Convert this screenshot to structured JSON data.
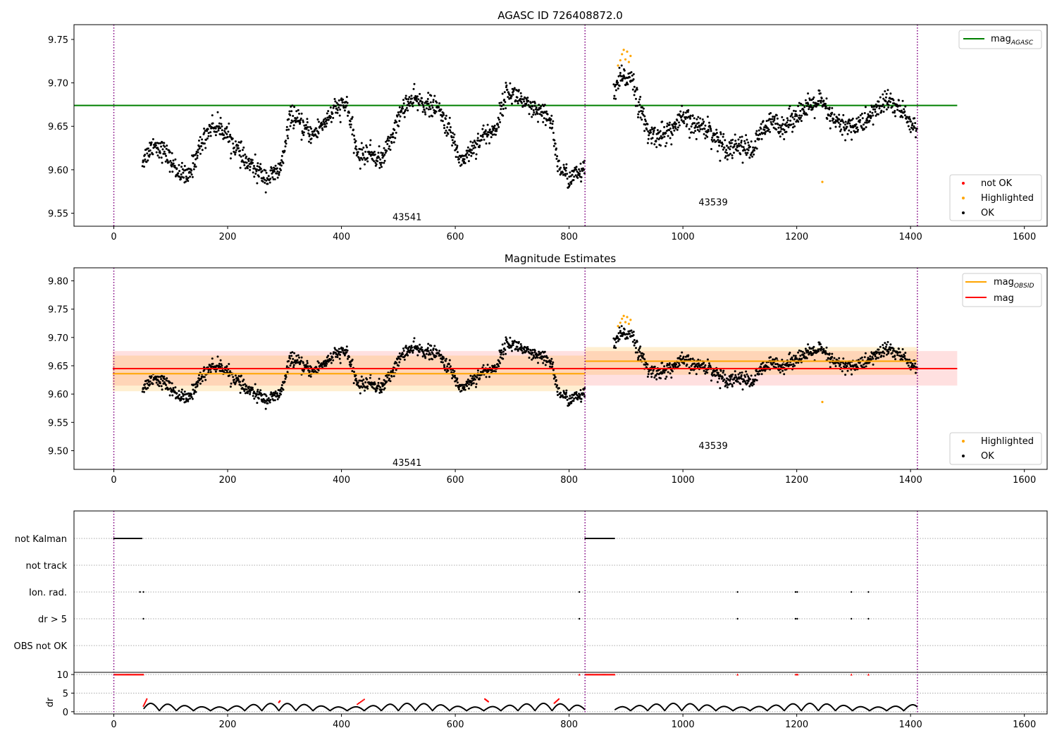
{
  "figure": {
    "title1": "AGASC ID 726408872.0",
    "title2": "Magnitude Estimates",
    "legend1_line": "mag",
    "legend1_line_sub": "AGASC",
    "legend1_scatter": [
      "not OK",
      "Highlighted",
      "OK"
    ],
    "legend2_line1": "mag",
    "legend2_line1_sub": "OBSID",
    "legend2_line2": "mag",
    "legend2_scatter": [
      "Highlighted",
      "OK"
    ],
    "obsid_labels": [
      "43541",
      "43539"
    ]
  },
  "colors": {
    "agasc_line": "#008000",
    "obsid_line": "#ffa500",
    "global_line": "#ff0000",
    "ok": "#000000",
    "highlighted": "#ffa500",
    "not_ok": "#ff0000",
    "boundary": "#800080"
  },
  "chart_data": [
    {
      "type": "scatter",
      "title": "AGASC ID 726408872.0",
      "xlim": [
        -70,
        1640
      ],
      "ylim": [
        9.535,
        9.767
      ],
      "xticks": [
        0,
        200,
        400,
        600,
        800,
        1000,
        1200,
        1400,
        1600
      ],
      "yticks": [
        9.55,
        9.6,
        9.65,
        9.7,
        9.75
      ],
      "obsid_boundaries": [
        0,
        828,
        1412
      ],
      "agasc_mag": 9.674,
      "agasc_mag_xrange": [
        -70,
        1482
      ],
      "segments": [
        {
          "obsid": "43541",
          "x_range": [
            50,
            828
          ],
          "trend_x": [
            50,
            70,
            90,
            110,
            130,
            150,
            170,
            190,
            210,
            230,
            250,
            270,
            290,
            300,
            310,
            330,
            350,
            370,
            390,
            410,
            420,
            430,
            450,
            470,
            490,
            510,
            530,
            550,
            570,
            590,
            610,
            630,
            650,
            670,
            690,
            710,
            730,
            750,
            770,
            780,
            800,
            828
          ],
          "trend_y": [
            9.61,
            9.63,
            9.62,
            9.6,
            9.59,
            9.625,
            9.65,
            9.648,
            9.63,
            9.61,
            9.6,
            9.59,
            9.598,
            9.62,
            9.665,
            9.65,
            9.64,
            9.655,
            9.67,
            9.675,
            9.64,
            9.615,
            9.62,
            9.61,
            9.64,
            9.675,
            9.68,
            9.675,
            9.67,
            9.645,
            9.61,
            9.625,
            9.64,
            9.645,
            9.69,
            9.685,
            9.67,
            9.665,
            9.655,
            9.605,
            9.59,
            9.6
          ],
          "noise": 0.011
        },
        {
          "obsid": "43539",
          "x_range": [
            878,
            1412
          ],
          "trend_x": [
            878,
            890,
            900,
            910,
            920,
            940,
            960,
            980,
            1000,
            1020,
            1040,
            1060,
            1080,
            1100,
            1120,
            1140,
            1160,
            1180,
            1200,
            1220,
            1240,
            1260,
            1280,
            1300,
            1320,
            1340,
            1360,
            1380,
            1400,
            1412
          ],
          "trend_y": [
            9.685,
            9.705,
            9.705,
            9.71,
            9.68,
            9.64,
            9.64,
            9.645,
            9.66,
            9.65,
            9.65,
            9.635,
            9.625,
            9.63,
            9.62,
            9.645,
            9.655,
            9.65,
            9.665,
            9.67,
            9.68,
            9.66,
            9.65,
            9.65,
            9.655,
            9.67,
            9.68,
            9.67,
            9.655,
            9.645
          ],
          "noise": 0.012
        }
      ],
      "highlighted_points": [
        [
          886,
          9.72
        ],
        [
          890,
          9.726
        ],
        [
          893,
          9.733
        ],
        [
          896,
          9.738
        ],
        [
          899,
          9.727
        ],
        [
          902,
          9.736
        ],
        [
          905,
          9.724
        ],
        [
          908,
          9.731
        ],
        [
          1245,
          9.586
        ]
      ],
      "ok_count": 1150,
      "obsid_label_positions": [
        [
          415,
          9.545
        ],
        [
          1120,
          9.562
        ]
      ]
    },
    {
      "type": "scatter",
      "title": "Magnitude Estimates",
      "xlim": [
        -70,
        1640
      ],
      "ylim": [
        9.467,
        9.823
      ],
      "xticks": [
        0,
        200,
        400,
        600,
        800,
        1000,
        1200,
        1400,
        1600
      ],
      "yticks": [
        9.5,
        9.55,
        9.6,
        9.65,
        9.7,
        9.75,
        9.8
      ],
      "mag": 9.645,
      "mag_band": [
        9.615,
        9.676
      ],
      "mag_xrange": [
        -2,
        1482
      ],
      "obsid_mag": [
        {
          "obsid": "43541",
          "x_range": [
            -2,
            828
          ],
          "mag": 9.636,
          "band": [
            9.605,
            9.668
          ]
        },
        {
          "obsid": "43539",
          "x_range": [
            828,
            1412
          ],
          "mag": 9.658,
          "band": [
            9.634,
            9.683
          ]
        }
      ],
      "obsid_label_positions": [
        [
          415,
          9.478
        ],
        [
          1120,
          9.508
        ]
      ]
    },
    {
      "type": "scatter",
      "title": "",
      "xlim": [
        -70,
        1640
      ],
      "flag_rows": [
        "not Kalman",
        "not track",
        "Ion. rad.",
        "dr > 5",
        "OBS not OK"
      ],
      "flag_events": {
        "not Kalman": [
          [
            0,
            50
          ],
          [
            828,
            880
          ]
        ],
        "not track": [],
        "Ion. rad.": [
          46,
          52,
          818,
          1096,
          1198,
          1201,
          1296,
          1326
        ],
        "dr > 5": [
          52,
          818,
          1096,
          1198,
          1201,
          1296,
          1326
        ],
        "OBS not OK": []
      },
      "dr_ylabel": "dr",
      "dr_yticks": [
        0,
        5,
        10
      ],
      "dr_ylim": [
        -0.6,
        10.4
      ],
      "dr_saturated_x": [
        [
          0,
          52
        ],
        [
          818
        ],
        [
          828,
          880
        ],
        [
          1096
        ],
        [
          1198,
          1202
        ],
        [
          1296
        ],
        [
          1326
        ]
      ],
      "dr_red_segments": [
        [
          52,
          58,
          1.5,
          3.4
        ],
        [
          290,
          292,
          2.5,
          2.9
        ],
        [
          428,
          440,
          2.0,
          3.3
        ],
        [
          652,
          658,
          3.4,
          2.7
        ],
        [
          774,
          782,
          2.3,
          3.4
        ]
      ]
    }
  ]
}
